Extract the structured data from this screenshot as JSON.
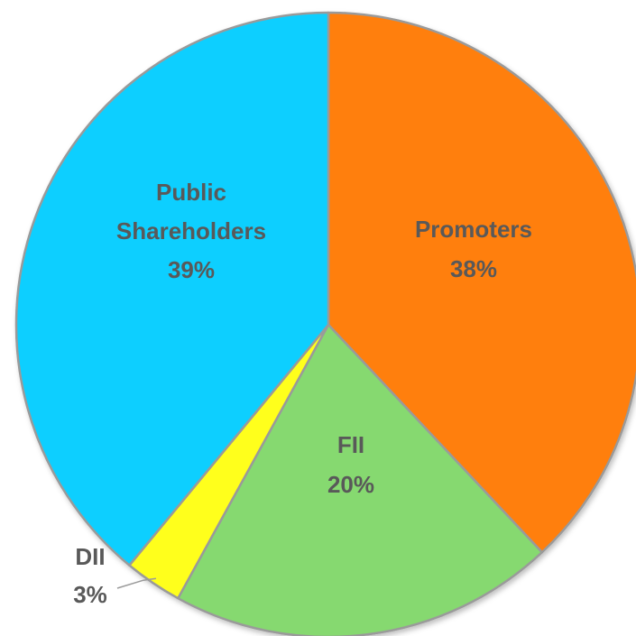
{
  "chart_data": {
    "type": "pie",
    "title": "",
    "start": "12 o'clock",
    "direction": "clockwise",
    "slices": [
      {
        "name": "Promoters",
        "name_lines": [
          "Promoters"
        ],
        "value": 38,
        "label": "38%",
        "color": "#ff7f0e"
      },
      {
        "name": "FII",
        "name_lines": [
          "FII"
        ],
        "value": 20,
        "label": "20%",
        "color": "#86d96f"
      },
      {
        "name": "DII",
        "name_lines": [
          "DII"
        ],
        "value": 3,
        "label": "3%",
        "color": "#ffff1a"
      },
      {
        "name": "Public Shareholders",
        "name_lines": [
          "Public",
          "Shareholders"
        ],
        "value": 39,
        "label": "39%",
        "color": "#11cfff"
      }
    ],
    "label_text_color": "#595959",
    "legend": "none",
    "data_labels": "category name and percentage"
  }
}
